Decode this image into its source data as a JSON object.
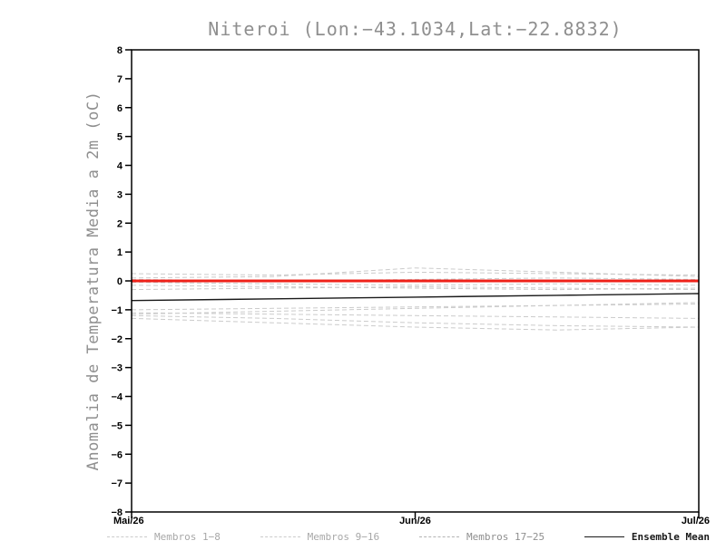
{
  "page": {
    "background": "#ffffff"
  },
  "chart_data": {
    "type": "line",
    "title": "Niteroi (Lon:−43.1034,Lat:−22.8832)",
    "ylabel": "Anomalia de Temperatura Media a 2m (oC)",
    "xlabel": "",
    "ylim": [
      -8,
      8
    ],
    "ytick_step": 1,
    "x_range": [
      0,
      2
    ],
    "x": [
      0,
      0.5,
      1,
      1.5,
      2
    ],
    "x_ticks": [
      {
        "pos": 0,
        "label": "Mai/26"
      },
      {
        "pos": 1,
        "label": "Jun/26"
      },
      {
        "pos": 2,
        "label": "Jul/26"
      }
    ],
    "grid": false,
    "legend_position": "bottom",
    "axis_color": "#000000",
    "title_color": "#8f8f8f",
    "series": [
      {
        "name": "membro",
        "color": "#cbcbcb",
        "width": 1,
        "dash": true,
        "values": [
          0.25,
          0.2,
          0.3,
          0.25,
          0.2
        ]
      },
      {
        "name": "membro",
        "color": "#cbcbcb",
        "width": 1,
        "dash": true,
        "values": [
          0.1,
          0.15,
          0.45,
          0.3,
          0.15
        ]
      },
      {
        "name": "membro",
        "color": "#cbcbcb",
        "width": 1,
        "dash": true,
        "values": [
          0.05,
          0.0,
          0.05,
          0.1,
          0.05
        ]
      },
      {
        "name": "membro",
        "color": "#cbcbcb",
        "width": 1,
        "dash": true,
        "values": [
          -0.05,
          -0.1,
          -0.15,
          -0.1,
          -0.15
        ]
      },
      {
        "name": "membro",
        "color": "#cbcbcb",
        "width": 1,
        "dash": true,
        "values": [
          -0.15,
          -0.2,
          -0.25,
          -0.3,
          -0.25
        ]
      },
      {
        "name": "membro",
        "color": "#cbcbcb",
        "width": 1,
        "dash": true,
        "values": [
          -0.3,
          -0.25,
          -0.2,
          -0.25,
          -0.3
        ]
      },
      {
        "name": "membro",
        "color": "#cbcbcb",
        "width": 1,
        "dash": true,
        "values": [
          -1.0,
          -0.95,
          -0.9,
          -0.85,
          -0.8
        ]
      },
      {
        "name": "membro",
        "color": "#cbcbcb",
        "width": 1,
        "dash": true,
        "values": [
          -1.1,
          -1.15,
          -1.2,
          -1.25,
          -1.3
        ]
      },
      {
        "name": "membro",
        "color": "#cbcbcb",
        "width": 1,
        "dash": true,
        "values": [
          -1.2,
          -1.3,
          -1.45,
          -1.55,
          -1.6
        ]
      },
      {
        "name": "membro",
        "color": "#cbcbcb",
        "width": 1,
        "dash": true,
        "values": [
          -1.3,
          -1.45,
          -1.6,
          -1.7,
          -1.6
        ]
      },
      {
        "name": "membro",
        "color": "#cbcbcb",
        "width": 1,
        "dash": true,
        "values": [
          -1.15,
          -1.05,
          -0.95,
          -0.85,
          -0.75
        ]
      },
      {
        "name": "zero-reference",
        "color": "#ef2119",
        "width": 3,
        "dash": false,
        "values": [
          0,
          0,
          0,
          0,
          0
        ]
      },
      {
        "name": "Ensemble Mean",
        "color": "#1a1a1a",
        "width": 1.4,
        "dash": false,
        "values": [
          -0.68,
          -0.62,
          -0.56,
          -0.5,
          -0.44
        ]
      }
    ],
    "legend": [
      {
        "label": "Membros 1−8",
        "dash": true,
        "color": "#cbcbcb",
        "label_color": "#a8a8a8",
        "bold": false
      },
      {
        "label": "Membros 9−16",
        "dash": true,
        "color": "#cbcbcb",
        "label_color": "#a8a8a8",
        "bold": false
      },
      {
        "label": "Membros 17−25",
        "dash": true,
        "color": "#b3b3b3",
        "label_color": "#8f8f8f",
        "bold": false
      },
      {
        "label": "Ensemble Mean",
        "dash": false,
        "color": "#1a1a1a",
        "label_color": "#1a1a1a",
        "bold": true
      }
    ]
  }
}
